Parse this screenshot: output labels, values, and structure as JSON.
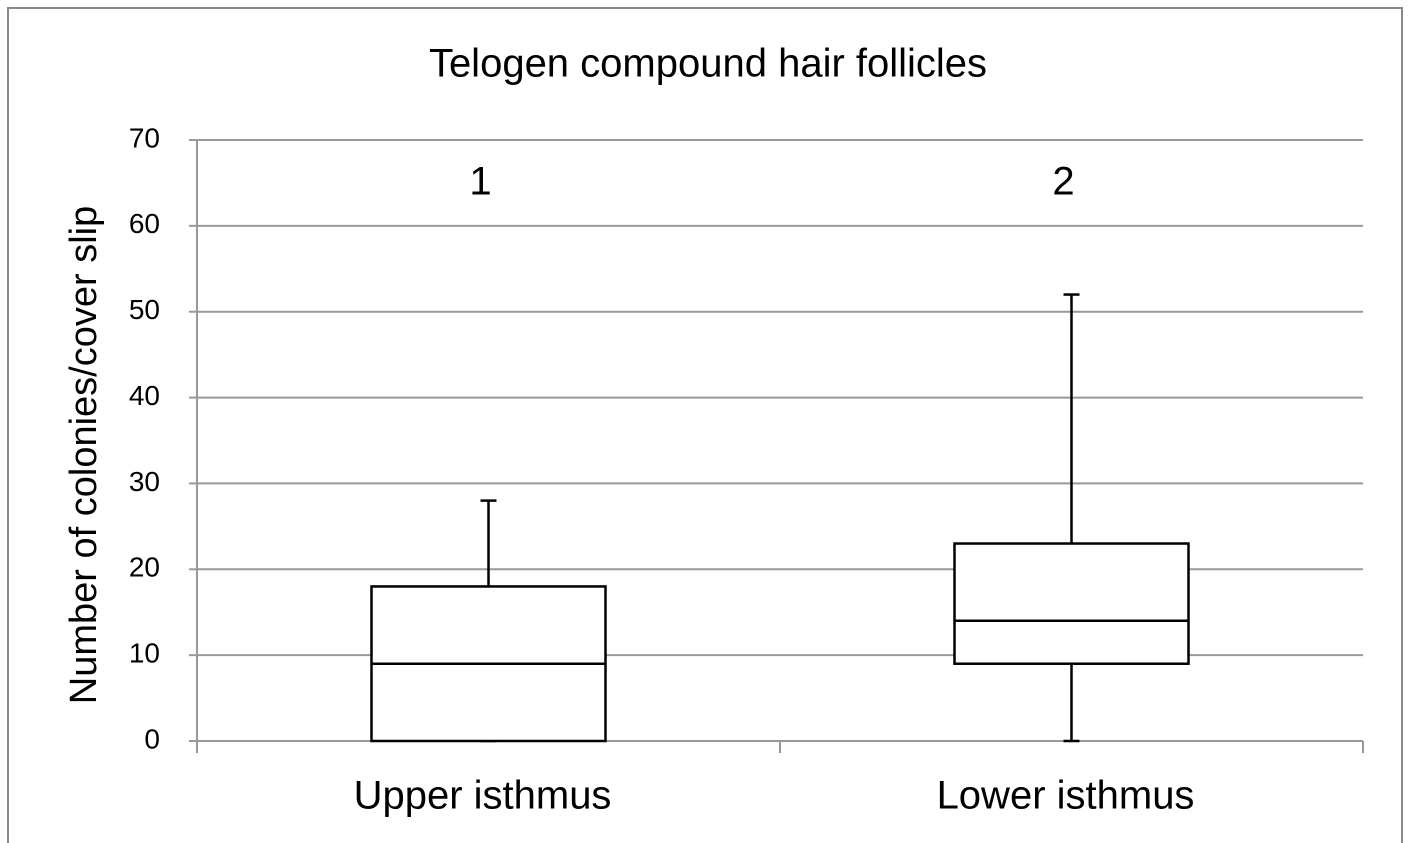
{
  "chart_data": {
    "type": "box",
    "title": "Telogen compound hair follicles",
    "y_label": "Number of colonies/cover slip",
    "categories": [
      "Upper isthmus",
      "Lower isthmus"
    ],
    "annotations": [
      "1",
      "2"
    ],
    "boxes": [
      {
        "min": 0,
        "q1": 0,
        "median": 9,
        "q3": 18,
        "max": 28
      },
      {
        "min": 0,
        "q1": 9,
        "median": 14,
        "q3": 23,
        "max": 52
      }
    ],
    "ylim": [
      0,
      70
    ],
    "yticks": [
      0,
      10,
      20,
      30,
      40,
      50,
      60,
      70
    ],
    "grid": true,
    "color": "#ffffff"
  }
}
